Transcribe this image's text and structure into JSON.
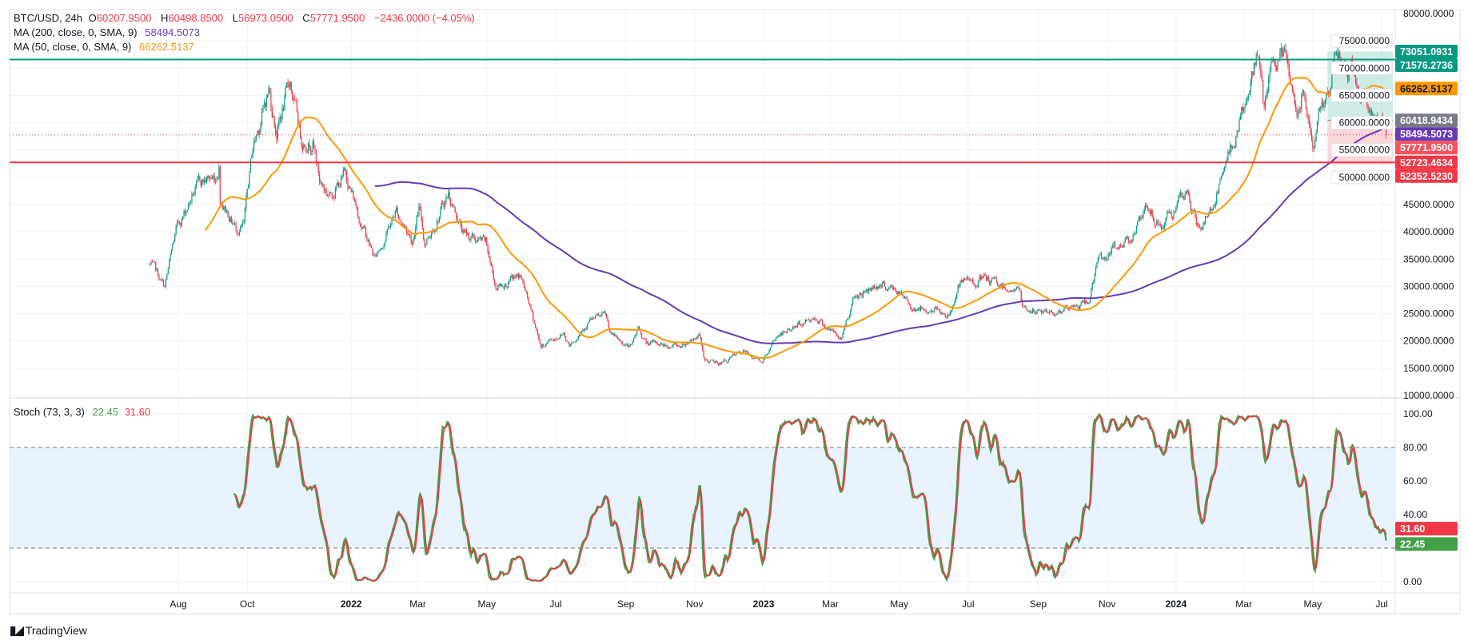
{
  "legend": {
    "symbol": "BTC/USD, 24h",
    "open_label": "O",
    "open": "60207.9500",
    "high_label": "H",
    "high": "60498.8500",
    "low_label": "L",
    "low": "56973.0500",
    "close_label": "C",
    "close": "57771.9500",
    "change": "−2436.0000 (−4.05%)",
    "ma200_label": "MA (200, close, 0, SMA, 9)",
    "ma200_value": "58494.5073",
    "ma50_label": "MA (50, close, 0, SMA, 9)",
    "ma50_value": "66262.5137",
    "stoch_label": "Stoch (73, 3, 3)",
    "stoch_k": "22.45",
    "stoch_d": "31.60"
  },
  "logo": {
    "text": "TradingView",
    "mark": "TV"
  },
  "colors": {
    "up": "#089981",
    "down": "#F23645",
    "ma200": "#673AB7",
    "ma50": "#FF9800",
    "stoch_k": "#43A047",
    "stoch_d": "#F23645",
    "band_fill": "#E8F3FD",
    "grid": "#F0F3FA",
    "border": "#E0E3EB"
  },
  "chart_data": [
    {
      "type": "candlestick",
      "title": "BTC/USD, 24h",
      "ylim": [
        10000,
        80000
      ],
      "y_ticks": [
        "80000.0000",
        "75000.0000",
        "70000.0000",
        "65000.0000",
        "60000.0000",
        "55000.0000",
        "50000.0000",
        "45000.0000",
        "40000.0000",
        "35000.0000",
        "30000.0000",
        "25000.0000",
        "20000.0000",
        "15000.0000",
        "10000.0000"
      ],
      "x_ticks": [
        {
          "label": "Aug",
          "date": "2021-08-01"
        },
        {
          "label": "Oct",
          "date": "2021-10-01"
        },
        {
          "label": "2022",
          "date": "2022-01-01",
          "bold": true
        },
        {
          "label": "Mar",
          "date": "2022-03-01"
        },
        {
          "label": "May",
          "date": "2022-05-01"
        },
        {
          "label": "Jul",
          "date": "2022-07-01"
        },
        {
          "label": "Sep",
          "date": "2022-09-01"
        },
        {
          "label": "Nov",
          "date": "2022-11-01"
        },
        {
          "label": "2023",
          "date": "2023-01-01",
          "bold": true
        },
        {
          "label": "Mar",
          "date": "2023-03-01"
        },
        {
          "label": "May",
          "date": "2023-05-01"
        },
        {
          "label": "Jul",
          "date": "2023-07-01"
        },
        {
          "label": "Sep",
          "date": "2023-09-01"
        },
        {
          "label": "Nov",
          "date": "2023-11-01"
        },
        {
          "label": "2024",
          "date": "2024-01-01",
          "bold": true
        },
        {
          "label": "Mar",
          "date": "2024-03-01"
        },
        {
          "label": "May",
          "date": "2024-05-01"
        },
        {
          "label": "Jul",
          "date": "2024-07-01"
        }
      ],
      "close_path": [
        [
          "2021-07-07",
          34000
        ],
        [
          "2021-07-20",
          29800
        ],
        [
          "2021-07-30",
          40000
        ],
        [
          "2021-08-14",
          47000
        ],
        [
          "2021-08-22",
          49300
        ],
        [
          "2021-09-03",
          50000
        ],
        [
          "2021-09-06",
          52700
        ],
        [
          "2021-09-07",
          46800
        ],
        [
          "2021-09-21",
          40700
        ],
        [
          "2021-09-28",
          41000
        ],
        [
          "2021-10-06",
          55300
        ],
        [
          "2021-10-20",
          66000
        ],
        [
          "2021-10-27",
          58500
        ],
        [
          "2021-11-08",
          67500
        ],
        [
          "2021-11-10",
          65000
        ],
        [
          "2021-11-18",
          56900
        ],
        [
          "2021-11-28",
          57200
        ],
        [
          "2021-12-04",
          49400
        ],
        [
          "2021-12-13",
          46700
        ],
        [
          "2021-12-27",
          50700
        ],
        [
          "2022-01-10",
          41800
        ],
        [
          "2022-01-22",
          35000
        ],
        [
          "2022-02-10",
          44000
        ],
        [
          "2022-02-24",
          38300
        ],
        [
          "2022-03-02",
          44400
        ],
        [
          "2022-03-07",
          38000
        ],
        [
          "2022-03-28",
          47100
        ],
        [
          "2022-04-11",
          39500
        ],
        [
          "2022-04-30",
          37700
        ],
        [
          "2022-05-09",
          30000
        ],
        [
          "2022-05-31",
          31800
        ],
        [
          "2022-06-13",
          22500
        ],
        [
          "2022-06-18",
          19000
        ],
        [
          "2022-07-08",
          21600
        ],
        [
          "2022-07-13",
          19300
        ],
        [
          "2022-07-30",
          23800
        ],
        [
          "2022-08-14",
          24400
        ],
        [
          "2022-08-19",
          21000
        ],
        [
          "2022-09-06",
          18800
        ],
        [
          "2022-09-12",
          22300
        ],
        [
          "2022-09-19",
          19500
        ],
        [
          "2022-10-20",
          19100
        ],
        [
          "2022-11-05",
          21300
        ],
        [
          "2022-11-09",
          16500
        ],
        [
          "2022-11-21",
          15800
        ],
        [
          "2022-12-14",
          17800
        ],
        [
          "2022-12-31",
          16550
        ],
        [
          "2023-01-14",
          21000
        ],
        [
          "2023-02-16",
          24500
        ],
        [
          "2023-03-10",
          20200
        ],
        [
          "2023-03-22",
          28200
        ],
        [
          "2023-04-14",
          30500
        ],
        [
          "2023-04-28",
          29300
        ],
        [
          "2023-05-12",
          26300
        ],
        [
          "2023-06-15",
          25000
        ],
        [
          "2023-06-22",
          30000
        ],
        [
          "2023-07-13",
          31400
        ],
        [
          "2023-08-16",
          29200
        ],
        [
          "2023-08-18",
          26000
        ],
        [
          "2023-09-11",
          25100
        ],
        [
          "2023-10-15",
          26900
        ],
        [
          "2023-10-24",
          34500
        ],
        [
          "2023-11-15",
          37800
        ],
        [
          "2023-12-08",
          43800
        ],
        [
          "2023-12-18",
          41000
        ],
        [
          "2024-01-11",
          46600
        ],
        [
          "2024-01-23",
          39500
        ],
        [
          "2024-02-15",
          52000
        ],
        [
          "2024-02-28",
          62500
        ],
        [
          "2024-03-05",
          63700
        ],
        [
          "2024-03-13",
          73100
        ],
        [
          "2024-03-19",
          62000
        ],
        [
          "2024-03-26",
          70000
        ],
        [
          "2024-04-08",
          71600
        ],
        [
          "2024-04-17",
          61200
        ],
        [
          "2024-04-23",
          66800
        ],
        [
          "2024-05-01",
          57900
        ],
        [
          "2024-05-15",
          66000
        ],
        [
          "2024-05-21",
          71400
        ],
        [
          "2024-06-07",
          69500
        ],
        [
          "2024-06-11",
          67300
        ],
        [
          "2024-06-24",
          60300
        ],
        [
          "2024-06-29",
          61000
        ],
        [
          "2024-07-04",
          60208
        ]
      ],
      "last_candle": {
        "open": 60207.95,
        "high": 60498.85,
        "low": 56973.05,
        "close": 57771.95
      },
      "indicators": [
        {
          "name": "MA (200, close, 0, SMA, 9)",
          "length": 200,
          "value": 58494.5073
        },
        {
          "name": "MA (50, close, 0, SMA, 9)",
          "length": 50,
          "value": 66262.5137
        }
      ],
      "horizontal_lines": [
        {
          "price": 71576.2736,
          "label": "71576.2736",
          "color": "#089981"
        },
        {
          "price": 52723.4634,
          "label": "52723.4634",
          "color": "#F23645"
        }
      ],
      "position_tool": {
        "start": "2024-05-14",
        "entry": 60418.9434,
        "target": 73051.0931,
        "stop": 52352.523,
        "labels": {
          "target": "73051.0931",
          "entry": "60418.9434",
          "stop": "52352.5230"
        }
      },
      "axis_labels": [
        {
          "price": 73051.0931,
          "text": "73051.0931",
          "bg": "#089981",
          "fg": "#FFFFFF"
        },
        {
          "price": 71576.2736,
          "text": "71576.2736",
          "bg": "#089981",
          "fg": "#FFFFFF"
        },
        {
          "price": 66262.5137,
          "text": "66262.5137",
          "bg": "#FF9800",
          "fg": "#131722"
        },
        {
          "price": 60418.9434,
          "text": "60418.9434",
          "bg": "#787B86",
          "fg": "#FFFFFF"
        },
        {
          "price": 58494.5073,
          "text": "58494.5073",
          "bg": "#673AB7",
          "fg": "#FFFFFF"
        },
        {
          "price": 57771.95,
          "text": "57771.9500",
          "bg": "#F7525F",
          "fg": "#FFFFFF"
        },
        {
          "price": 52723.4634,
          "text": "52723.4634",
          "bg": "#F23645",
          "fg": "#FFFFFF"
        },
        {
          "price": 52352.523,
          "text": "52352.5230",
          "bg": "#F23645",
          "fg": "#FFFFFF"
        }
      ]
    },
    {
      "type": "line",
      "title": "Stoch (73, 3, 3)",
      "ylim": [
        0,
        100
      ],
      "y_ticks": [
        "100.00",
        "80.00",
        "60.00",
        "40.00",
        "0.00"
      ],
      "bands": [
        20,
        80
      ],
      "series": [
        {
          "name": "%K",
          "value": 22.45,
          "color": "#43A047"
        },
        {
          "name": "%D",
          "value": 31.6,
          "color": "#F23645"
        }
      ],
      "axis_labels": [
        {
          "value": 31.6,
          "text": "31.60",
          "bg": "#F23645"
        },
        {
          "value": 22.45,
          "text": "22.45",
          "bg": "#43A047"
        }
      ]
    }
  ]
}
